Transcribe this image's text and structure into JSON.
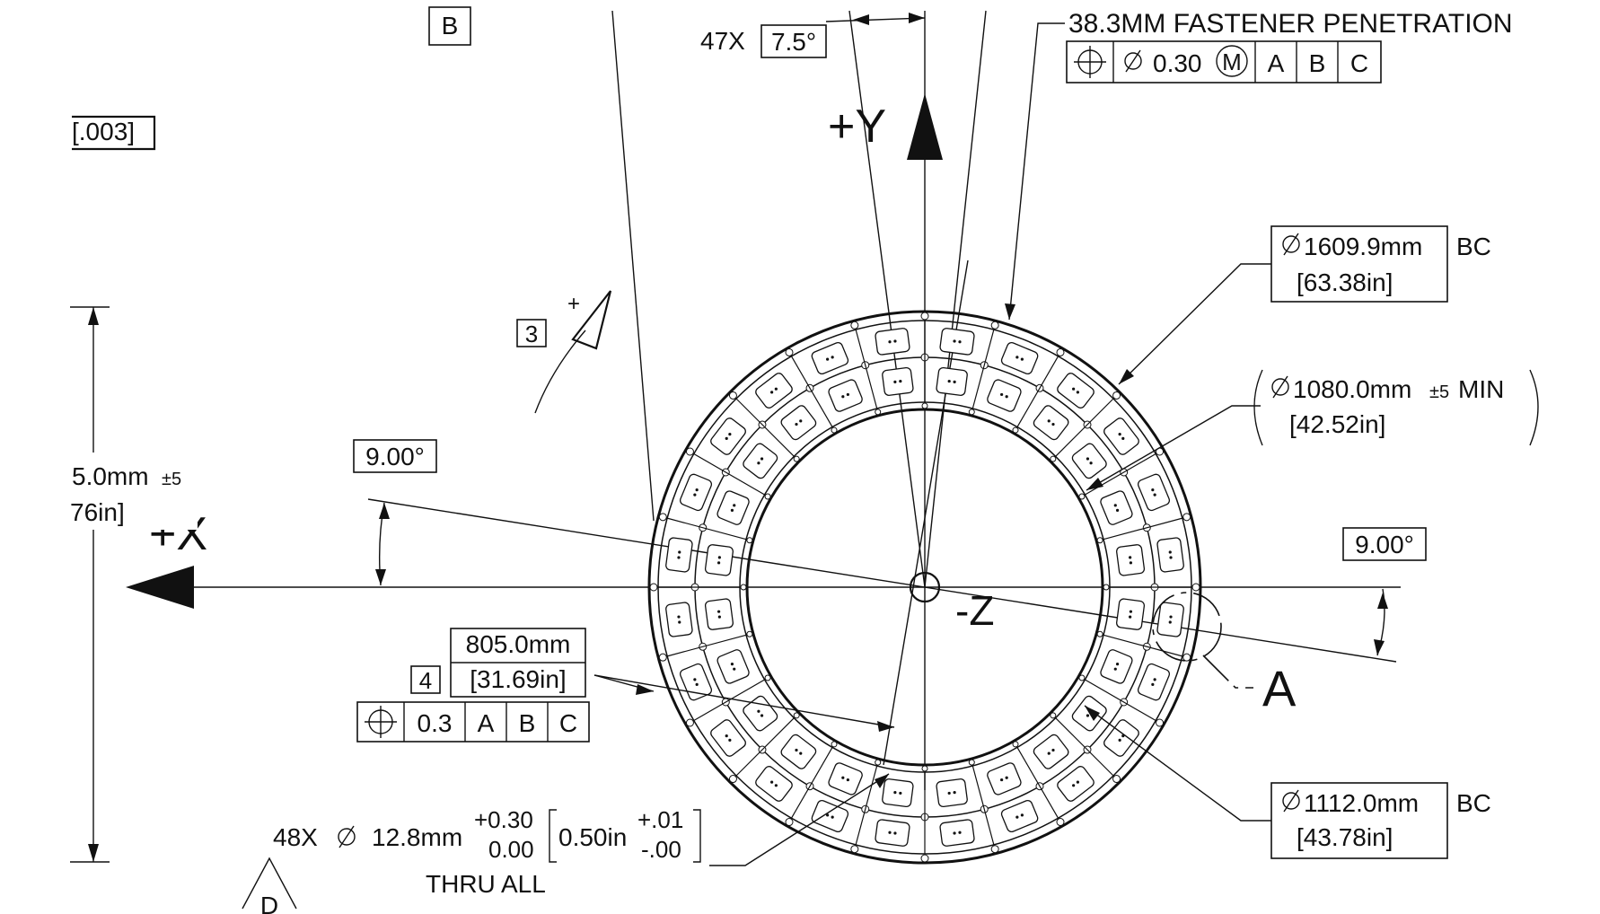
{
  "datum_b": "B",
  "leftnote": "[.003]",
  "angle47": {
    "count": "47X",
    "value": "7.5°"
  },
  "fastener": {
    "title": "38.3MM FASTENER PENETRATION",
    "fcf": [
      "0.30",
      "M",
      "A",
      "B",
      "C"
    ]
  },
  "axes": {
    "plus_y": "+Y",
    "plus_x": "+X",
    "minus_z": "-Z"
  },
  "bc1": {
    "mm": "1609.9mm",
    "in": "[63.38in]",
    "suffix": "BC"
  },
  "d1080": {
    "mm": "1080.0mm",
    "tol": "±5",
    "suffix": "MIN",
    "in": "[42.52in]"
  },
  "bc2": {
    "mm": "1112.0mm",
    "in": "[43.78in]",
    "suffix": "BC"
  },
  "angle_left": "9.00°",
  "angle_right": "9.00°",
  "left_dim": {
    "mm": "5.0mm",
    "tol": "±5",
    "in": "76in]"
  },
  "flag3": "3",
  "flag4": "4",
  "dim805": {
    "mm": "805.0mm",
    "in": "[31.69in]"
  },
  "fcf2": [
    "0.3",
    "A",
    "B",
    "C"
  ],
  "holes": {
    "count": "48X",
    "dia": "12.8mm",
    "tol_up": "+0.30",
    "tol_dn": "0.00",
    "inch": "0.50in",
    "itol_up": "+.01",
    "itol_dn": "-.00",
    "thru": "THRU ALL"
  },
  "detail": "A",
  "datum_d": "D"
}
